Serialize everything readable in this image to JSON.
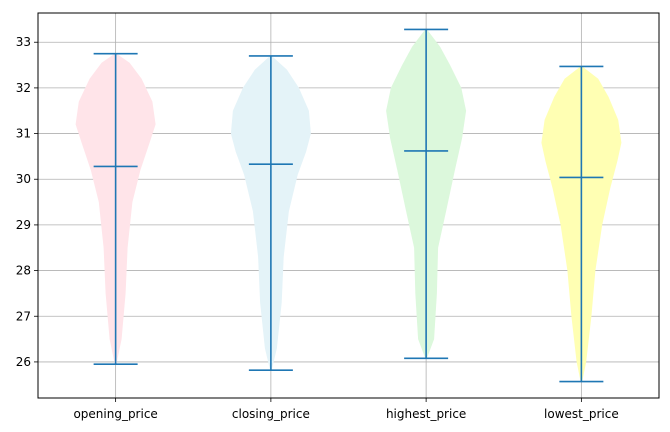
{
  "chart_data": {
    "type": "violin",
    "categories": [
      "opening_price",
      "closing_price",
      "highest_price",
      "lowest_price"
    ],
    "series": [
      {
        "category": "opening_price",
        "color": "#ffe4e9",
        "min": 25.95,
        "mean": 30.28,
        "max": 32.75,
        "density": [
          [
            25.95,
            0.02
          ],
          [
            26.5,
            0.15
          ],
          [
            27.5,
            0.25
          ],
          [
            28.5,
            0.3
          ],
          [
            29.5,
            0.42
          ],
          [
            30.2,
            0.62
          ],
          [
            30.8,
            0.85
          ],
          [
            31.2,
            1.0
          ],
          [
            31.7,
            0.92
          ],
          [
            32.2,
            0.65
          ],
          [
            32.55,
            0.35
          ],
          [
            32.75,
            0.02
          ]
        ]
      },
      {
        "category": "closing_price",
        "color": "#e4f3f8",
        "min": 25.82,
        "mean": 30.33,
        "max": 32.7,
        "density": [
          [
            25.82,
            0.02
          ],
          [
            26.3,
            0.15
          ],
          [
            27.3,
            0.27
          ],
          [
            28.3,
            0.32
          ],
          [
            29.3,
            0.45
          ],
          [
            30.1,
            0.67
          ],
          [
            30.6,
            0.88
          ],
          [
            31.0,
            1.0
          ],
          [
            31.5,
            0.95
          ],
          [
            32.0,
            0.7
          ],
          [
            32.4,
            0.4
          ],
          [
            32.7,
            0.02
          ]
        ]
      },
      {
        "category": "highest_price",
        "color": "#dcf8dc",
        "min": 26.08,
        "mean": 30.62,
        "max": 33.28,
        "density": [
          [
            26.08,
            0.02
          ],
          [
            26.5,
            0.2
          ],
          [
            27.5,
            0.27
          ],
          [
            28.5,
            0.3
          ],
          [
            29.3,
            0.5
          ],
          [
            30.2,
            0.72
          ],
          [
            30.9,
            0.9
          ],
          [
            31.5,
            1.0
          ],
          [
            32.0,
            0.88
          ],
          [
            32.5,
            0.6
          ],
          [
            32.9,
            0.35
          ],
          [
            33.28,
            0.02
          ]
        ]
      },
      {
        "category": "lowest_price",
        "color": "#ffffb3",
        "min": 25.57,
        "mean": 30.04,
        "max": 32.47,
        "density": [
          [
            25.57,
            0.02
          ],
          [
            26.0,
            0.12
          ],
          [
            27.0,
            0.25
          ],
          [
            28.0,
            0.35
          ],
          [
            29.0,
            0.52
          ],
          [
            29.8,
            0.72
          ],
          [
            30.4,
            0.9
          ],
          [
            30.8,
            1.0
          ],
          [
            31.3,
            0.92
          ],
          [
            31.8,
            0.68
          ],
          [
            32.2,
            0.42
          ],
          [
            32.47,
            0.02
          ]
        ]
      }
    ],
    "line_color": "#1f77b4",
    "yticks": [
      26,
      27,
      28,
      29,
      30,
      31,
      32,
      33
    ],
    "ylim": [
      25.21,
      33.64
    ],
    "grid": true,
    "title": "",
    "xlabel": "",
    "ylabel": ""
  }
}
